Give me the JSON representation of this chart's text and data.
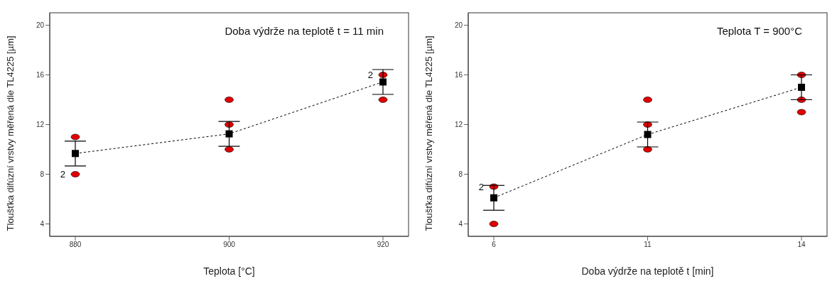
{
  "chart_data": [
    {
      "type": "line",
      "categories": [
        "880",
        "900",
        "920"
      ],
      "xlabel": "Teplota [°C]",
      "ylabel": "Tloušťka difúzní vrstvy měřená dle TL4225 [µm]",
      "ylim": [
        3,
        21
      ],
      "yticks": [
        4,
        8,
        12,
        16,
        20
      ],
      "grid": false,
      "legend": false,
      "series": [
        {
          "type": "scatter",
          "color": "#e00000",
          "marker": "circle",
          "x": [
            "880",
            "880",
            "900",
            "900",
            "900",
            "920",
            "920"
          ],
          "values": [
            11,
            8,
            14,
            12,
            10,
            16,
            14
          ]
        },
        {
          "type": "line",
          "color": "#000000",
          "marker": "square",
          "line_style": "dashed",
          "values": [
            9.67,
            11.25,
            15.43
          ],
          "errors": [
            1,
            1,
            1
          ]
        }
      ],
      "annotations": [
        "Doba výdrže na teplotě t = 11 min",
        {
          "text": "2",
          "x": "880",
          "y": 8
        },
        {
          "text": "2",
          "x": "920",
          "y": 16
        }
      ]
    },
    {
      "type": "line",
      "categories": [
        "6",
        "11",
        "14"
      ],
      "xlabel": "Doba výdrže na teplotě t [min]",
      "ylabel": "Tloušťka difúzní vrstvy měřená dle TL4225 [µm]",
      "ylim": [
        3,
        21
      ],
      "yticks": [
        4,
        8,
        12,
        16,
        20
      ],
      "grid": false,
      "legend": false,
      "series": [
        {
          "type": "scatter",
          "color": "#e00000",
          "marker": "circle",
          "x": [
            "6",
            "6",
            "11",
            "11",
            "11",
            "14",
            "14",
            "14"
          ],
          "values": [
            7,
            4,
            14,
            12,
            10,
            16,
            14,
            13
          ]
        },
        {
          "type": "line",
          "color": "#000000",
          "marker": "square",
          "line_style": "dashed",
          "values": [
            6.1,
            11.2,
            15
          ],
          "errors": [
            1,
            1,
            1
          ]
        }
      ],
      "annotations": [
        "Teplota  T = 900°C",
        {
          "text": "2",
          "x": "6",
          "y": 7
        }
      ]
    }
  ]
}
